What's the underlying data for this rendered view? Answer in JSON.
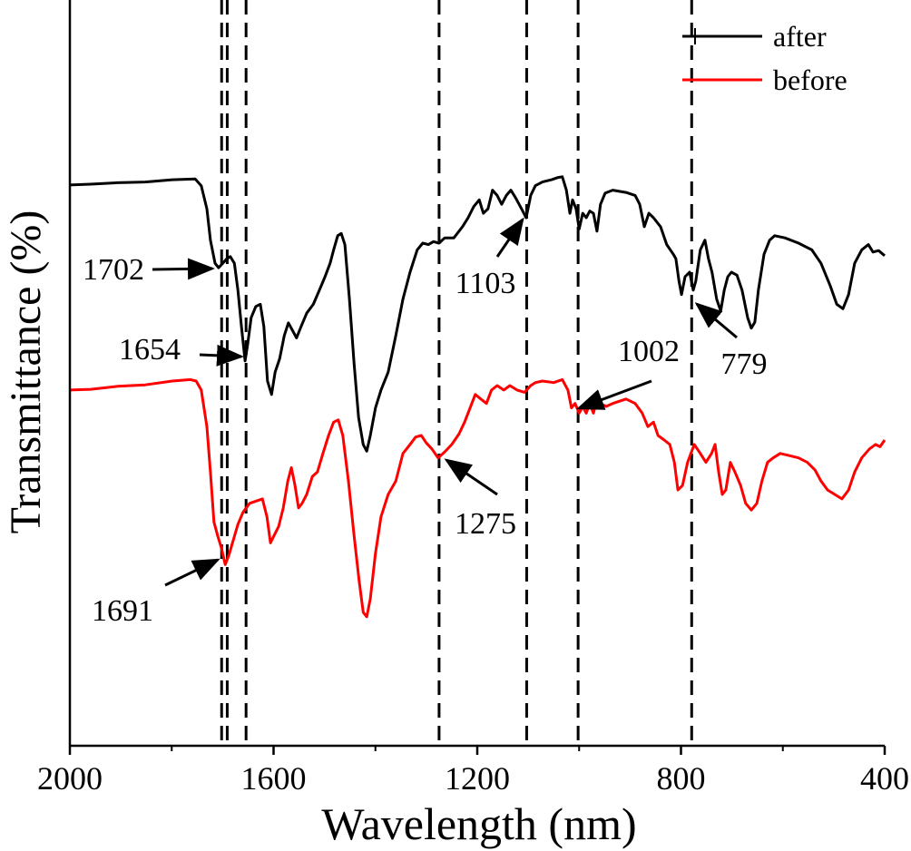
{
  "chart_data": {
    "type": "line",
    "x_label": "Wavelength (nm)",
    "y_label": "Transmittance (%)",
    "xlim": [
      2000,
      400
    ],
    "ylim": [
      0,
      100
    ],
    "xticks": [
      2000,
      1600,
      1200,
      800,
      400
    ],
    "xminorticks": [
      1800,
      1400,
      1000,
      600
    ],
    "vlines": [
      1702,
      1691,
      1654,
      1275,
      1103,
      1002,
      779
    ],
    "legend": "upper right",
    "series": [
      {
        "name": "after",
        "color": "#000000",
        "x": [
          2000,
          1959,
          1906,
          1852,
          1799,
          1754,
          1742,
          1731,
          1724,
          1715,
          1708,
          1701,
          1692,
          1685,
          1677,
          1670,
          1663,
          1656,
          1651,
          1644,
          1635,
          1626,
          1619,
          1612,
          1604,
          1597,
          1588,
          1579,
          1571,
          1563,
          1555,
          1546,
          1535,
          1522,
          1510,
          1499,
          1489,
          1482,
          1474,
          1467,
          1460,
          1451,
          1442,
          1433,
          1424,
          1417,
          1410,
          1400,
          1389,
          1375,
          1360,
          1346,
          1332,
          1318,
          1307,
          1296,
          1286,
          1275,
          1264,
          1246,
          1229,
          1218,
          1207,
          1196,
          1188,
          1179,
          1170,
          1161,
          1152,
          1143,
          1134,
          1125,
          1113,
          1104,
          1095,
          1086,
          1072,
          1054,
          1041,
          1033,
          1025,
          1018,
          1013,
          1006,
          1000,
          993,
          986,
          979,
          972,
          965,
          958,
          949,
          934,
          908,
          890,
          881,
          872,
          863,
          854,
          840,
          828,
          815,
          810,
          804,
          799,
          792,
          783,
          776,
          771,
          762,
          753,
          746,
          739,
          730,
          722,
          715,
          708,
          701,
          690,
          680,
          669,
          662,
          655,
          648,
          637,
          626,
          616,
          596,
          569,
          543,
          525,
          507,
          494,
          482,
          471,
          459,
          445,
          432,
          423,
          412,
          400
        ],
        "values": [
          75.2,
          75.3,
          75.5,
          75.6,
          75.9,
          76.0,
          75.1,
          72.0,
          67.8,
          64.7,
          64.1,
          64.6,
          65.3,
          65.6,
          64.7,
          61.1,
          56.2,
          51.6,
          53.8,
          57.4,
          58.9,
          59.2,
          56.2,
          48.9,
          47.1,
          50.1,
          51.9,
          55.0,
          56.7,
          55.7,
          54.7,
          56.2,
          58.0,
          59.2,
          61.1,
          62.9,
          64.7,
          66.5,
          68.4,
          68.7,
          67.2,
          59.9,
          51.3,
          44.0,
          40.4,
          39.5,
          41.6,
          45.3,
          47.7,
          50.1,
          55.0,
          59.9,
          63.5,
          66.5,
          67.4,
          67.2,
          67.6,
          67.4,
          68.1,
          68.1,
          69.6,
          70.8,
          72.3,
          73.2,
          71.4,
          72.0,
          74.5,
          73.8,
          72.6,
          73.8,
          74.5,
          73.5,
          72.0,
          70.8,
          73.8,
          75.1,
          75.6,
          75.9,
          76.2,
          76.3,
          74.5,
          71.4,
          73.2,
          72.0,
          69.3,
          71.4,
          70.8,
          71.7,
          71.4,
          69.0,
          72.6,
          74.1,
          74.5,
          74.2,
          73.8,
          72.6,
          69.6,
          71.4,
          70.8,
          69.6,
          67.2,
          65.9,
          65.3,
          62.3,
          60.5,
          62.9,
          63.5,
          61.1,
          62.3,
          66.5,
          67.8,
          65.3,
          63.5,
          59.9,
          58.3,
          61.1,
          62.9,
          63.5,
          63.1,
          61.1,
          57.4,
          56.0,
          56.8,
          61.1,
          65.9,
          67.8,
          68.4,
          68.1,
          67.4,
          66.5,
          64.7,
          61.7,
          59.2,
          58.6,
          60.5,
          64.7,
          66.5,
          67.2,
          66.2,
          66.4,
          65.7
        ]
      },
      {
        "name": "before",
        "color": "#ff0000",
        "x": [
          2000,
          1959,
          1906,
          1852,
          1799,
          1763,
          1752,
          1742,
          1731,
          1724,
          1717,
          1710,
          1702,
          1695,
          1688,
          1679,
          1670,
          1660,
          1647,
          1635,
          1622,
          1613,
          1606,
          1599,
          1590,
          1581,
          1572,
          1565,
          1558,
          1551,
          1544,
          1535,
          1524,
          1514,
          1503,
          1492,
          1482,
          1473,
          1464,
          1453,
          1442,
          1432,
          1424,
          1417,
          1410,
          1400,
          1389,
          1375,
          1360,
          1346,
          1332,
          1321,
          1310,
          1300,
          1289,
          1277,
          1264,
          1250,
          1236,
          1225,
          1214,
          1204,
          1193,
          1182,
          1172,
          1161,
          1148,
          1136,
          1122,
          1107,
          1095,
          1086,
          1072,
          1050,
          1033,
          1022,
          1015,
          1008,
          1000,
          993,
          986,
          979,
          972,
          965,
          958,
          947,
          934,
          908,
          890,
          876,
          865,
          854,
          845,
          833,
          822,
          813,
          806,
          797,
          787,
          774,
          762,
          751,
          740,
          733,
          726,
          719,
          712,
          703,
          694,
          683,
          673,
          662,
          651,
          641,
          630,
          619,
          605,
          587,
          569,
          552,
          537,
          525,
          512,
          498,
          484,
          471,
          459,
          445,
          430,
          418,
          409,
          400
        ],
        "values": [
          47.7,
          47.8,
          48.2,
          48.4,
          48.9,
          49.1,
          48.9,
          47.7,
          42.8,
          36.7,
          30.0,
          28.2,
          26.4,
          24.3,
          25.5,
          27.6,
          29.7,
          31.3,
          32.5,
          32.8,
          33.1,
          30.7,
          27.2,
          28.2,
          29.4,
          31.9,
          35.5,
          37.3,
          34.9,
          31.9,
          32.5,
          33.7,
          36.1,
          36.7,
          39.2,
          41.6,
          43.4,
          43.7,
          41.6,
          35.5,
          28.2,
          22.1,
          17.9,
          17.3,
          19.7,
          25.8,
          30.7,
          33.7,
          35.5,
          39.2,
          40.4,
          41.4,
          41.6,
          40.6,
          39.8,
          38.6,
          39.4,
          40.4,
          41.8,
          43.4,
          45.3,
          47.1,
          46.5,
          45.9,
          47.7,
          48.3,
          47.7,
          48.3,
          47.7,
          47.4,
          48.3,
          48.7,
          48.9,
          48.7,
          49.1,
          47.7,
          45.3,
          45.9,
          44.6,
          45.5,
          44.6,
          45.9,
          44.6,
          46.5,
          45.9,
          45.5,
          45.9,
          46.5,
          45.9,
          44.6,
          42.8,
          43.4,
          41.6,
          41.0,
          40.4,
          38.0,
          34.3,
          34.9,
          38.0,
          40.4,
          39.2,
          38.0,
          39.2,
          40.4,
          36.7,
          33.7,
          34.3,
          38.0,
          36.7,
          34.9,
          32.5,
          31.6,
          32.5,
          35.5,
          38.0,
          38.6,
          39.2,
          38.9,
          38.6,
          38.0,
          37.0,
          35.5,
          34.3,
          33.7,
          33.1,
          34.3,
          36.7,
          38.6,
          39.8,
          40.4,
          40.1,
          41.0
        ]
      }
    ]
  }
}
